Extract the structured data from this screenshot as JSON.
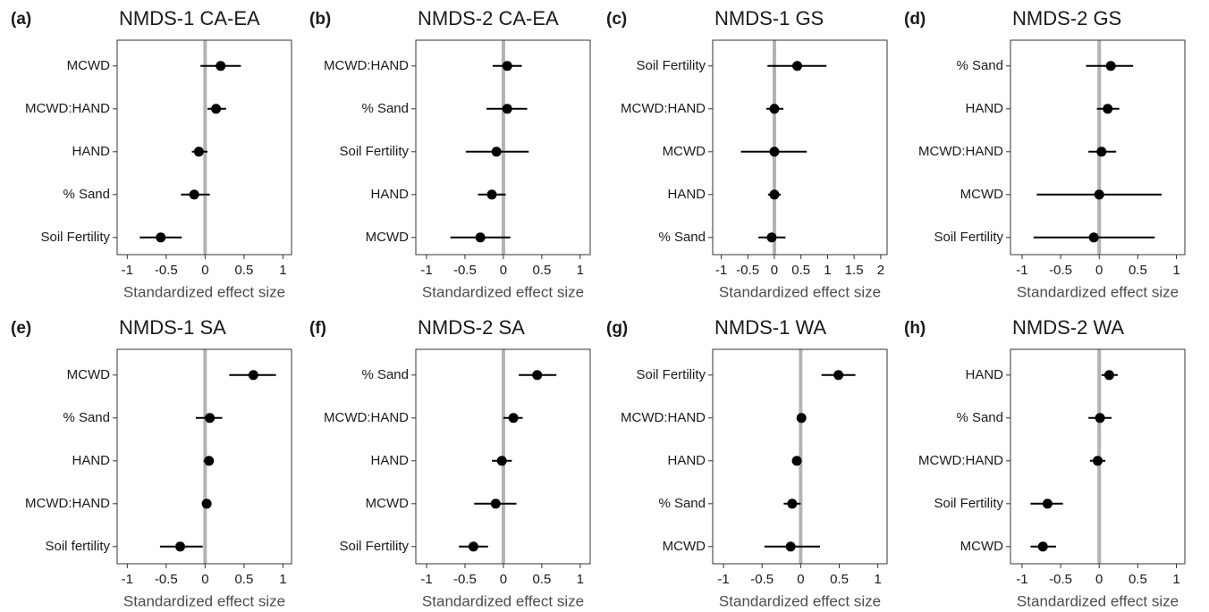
{
  "chart_data": [
    {
      "type": "forest",
      "panel_label": "(a)",
      "title": "NMDS-1 CA-EA",
      "xlabel": "Standardized effect size",
      "categories": [
        "MCWD",
        "MCWD:HAND",
        "HAND",
        "% Sand",
        "Soil Fertility"
      ],
      "values": [
        0.2,
        0.14,
        -0.08,
        -0.14,
        -0.57
      ],
      "ci_low": [
        -0.06,
        0.03,
        -0.17,
        -0.31,
        -0.84
      ],
      "ci_high": [
        0.46,
        0.27,
        0.03,
        0.06,
        -0.3
      ],
      "xlim": [
        -1.13,
        1.11
      ],
      "xticks": [
        -1,
        -0.5,
        0,
        0.5,
        1
      ],
      "zero_line": 0,
      "color": "#000000",
      "zero_line_color": "#b3b3b3"
    },
    {
      "type": "forest",
      "panel_label": "(b)",
      "title": "NMDS-2 CA-EA",
      "xlabel": "Standardized effect size",
      "categories": [
        "MCWD:HAND",
        "% Sand",
        "Soil Fertility",
        "HAND",
        "MCWD"
      ],
      "values": [
        0.05,
        0.05,
        -0.09,
        -0.15,
        -0.3
      ],
      "ci_low": [
        -0.14,
        -0.22,
        -0.49,
        -0.33,
        -0.69
      ],
      "ci_high": [
        0.24,
        0.31,
        0.33,
        0.03,
        0.09
      ],
      "xlim": [
        -1.14,
        1.13
      ],
      "xticks": [
        -1,
        -0.5,
        0,
        0.5,
        1
      ],
      "zero_line": 0,
      "color": "#000000",
      "zero_line_color": "#b3b3b3"
    },
    {
      "type": "forest",
      "panel_label": "(c)",
      "title": "NMDS-1 GS",
      "xlabel": "Standardized effect size",
      "categories": [
        "Soil Fertility",
        "MCWD:HAND",
        "MCWD",
        "HAND",
        "% Sand"
      ],
      "values": [
        0.43,
        0,
        0,
        0,
        -0.05
      ],
      "ci_low": [
        -0.13,
        -0.15,
        -0.63,
        -0.12,
        -0.3
      ],
      "ci_high": [
        0.98,
        0.17,
        0.61,
        0.12,
        0.21
      ],
      "xlim": [
        -1.16,
        2.12
      ],
      "xticks": [
        -1,
        -0.5,
        0,
        0.5,
        1,
        1.5,
        2
      ],
      "zero_line": 0,
      "color": "#000000",
      "zero_line_color": "#b3b3b3"
    },
    {
      "type": "forest",
      "panel_label": "(d)",
      "title": "NMDS-2 GS",
      "xlabel": "Standardized effect size",
      "categories": [
        "% Sand",
        "HAND",
        "MCWD:HAND",
        "MCWD",
        "Soil Fertility"
      ],
      "values": [
        0.15,
        0.11,
        0.03,
        0,
        -0.07
      ],
      "ci_low": [
        -0.17,
        -0.03,
        -0.14,
        -0.81,
        -0.85
      ],
      "ci_high": [
        0.44,
        0.26,
        0.22,
        0.81,
        0.72
      ],
      "xlim": [
        -1.15,
        1.11
      ],
      "xticks": [
        -1,
        -0.5,
        0,
        0.5,
        1
      ],
      "zero_line": 0,
      "color": "#000000",
      "zero_line_color": "#b3b3b3"
    },
    {
      "type": "forest",
      "panel_label": "(e)",
      "title": "NMDS-1 SA",
      "xlabel": "Standardized effect size",
      "categories": [
        "MCWD",
        "% Sand",
        "HAND",
        "MCWD:HAND",
        "Soil fertility"
      ],
      "values": [
        0.62,
        0.06,
        0.05,
        0.02,
        -0.32
      ],
      "ci_low": [
        0.31,
        -0.12,
        -0.02,
        -0.04,
        -0.58
      ],
      "ci_high": [
        0.91,
        0.22,
        0.1,
        0.07,
        -0.03
      ],
      "xlim": [
        -1.13,
        1.11
      ],
      "xticks": [
        -1,
        -0.5,
        0,
        0.5,
        1
      ],
      "zero_line": 0,
      "color": "#000000",
      "zero_line_color": "#b3b3b3"
    },
    {
      "type": "forest",
      "panel_label": "(f)",
      "title": "NMDS-2 SA",
      "xlabel": "Standardized effect size",
      "categories": [
        "% Sand",
        "MCWD:HAND",
        "HAND",
        "MCWD",
        "Soil Fertility"
      ],
      "values": [
        0.44,
        0.13,
        -0.02,
        -0.1,
        -0.39
      ],
      "ci_low": [
        0.2,
        0,
        -0.15,
        -0.38,
        -0.58
      ],
      "ci_high": [
        0.69,
        0.25,
        0.11,
        0.17,
        -0.2
      ],
      "xlim": [
        -1.14,
        1.13
      ],
      "xticks": [
        -1,
        -0.5,
        0,
        0.5,
        1
      ],
      "zero_line": 0,
      "color": "#000000",
      "zero_line_color": "#b3b3b3"
    },
    {
      "type": "forest",
      "panel_label": "(g)",
      "title": "NMDS-1 WA",
      "xlabel": "Standardized effect size",
      "categories": [
        "Soil Fertility",
        "MCWD:HAND",
        "HAND",
        "% Sand",
        "MCWD"
      ],
      "values": [
        0.49,
        0.01,
        -0.05,
        -0.11,
        -0.13
      ],
      "ci_low": [
        0.27,
        -0.02,
        -0.09,
        -0.22,
        -0.47
      ],
      "ci_high": [
        0.71,
        0.05,
        0,
        0,
        0.25
      ],
      "xlim": [
        -1.14,
        1.12
      ],
      "xticks": [
        -1,
        -0.5,
        0,
        0.5,
        1
      ],
      "zero_line": 0,
      "color": "#000000",
      "zero_line_color": "#b3b3b3"
    },
    {
      "type": "forest",
      "panel_label": "(h)",
      "title": "NMDS-2 WA",
      "xlabel": "Standardized effect size",
      "categories": [
        "HAND",
        "% Sand",
        "MCWD:HAND",
        "Soil Fertility",
        "MCWD"
      ],
      "values": [
        0.13,
        0.01,
        -0.02,
        -0.67,
        -0.73
      ],
      "ci_low": [
        0.03,
        -0.14,
        -0.12,
        -0.89,
        -0.89
      ],
      "ci_high": [
        0.24,
        0.16,
        0.08,
        -0.47,
        -0.56
      ],
      "xlim": [
        -1.15,
        1.11
      ],
      "xticks": [
        -1,
        -0.5,
        0,
        0.5,
        1
      ],
      "zero_line": 0,
      "color": "#000000",
      "zero_line_color": "#b3b3b3"
    }
  ]
}
